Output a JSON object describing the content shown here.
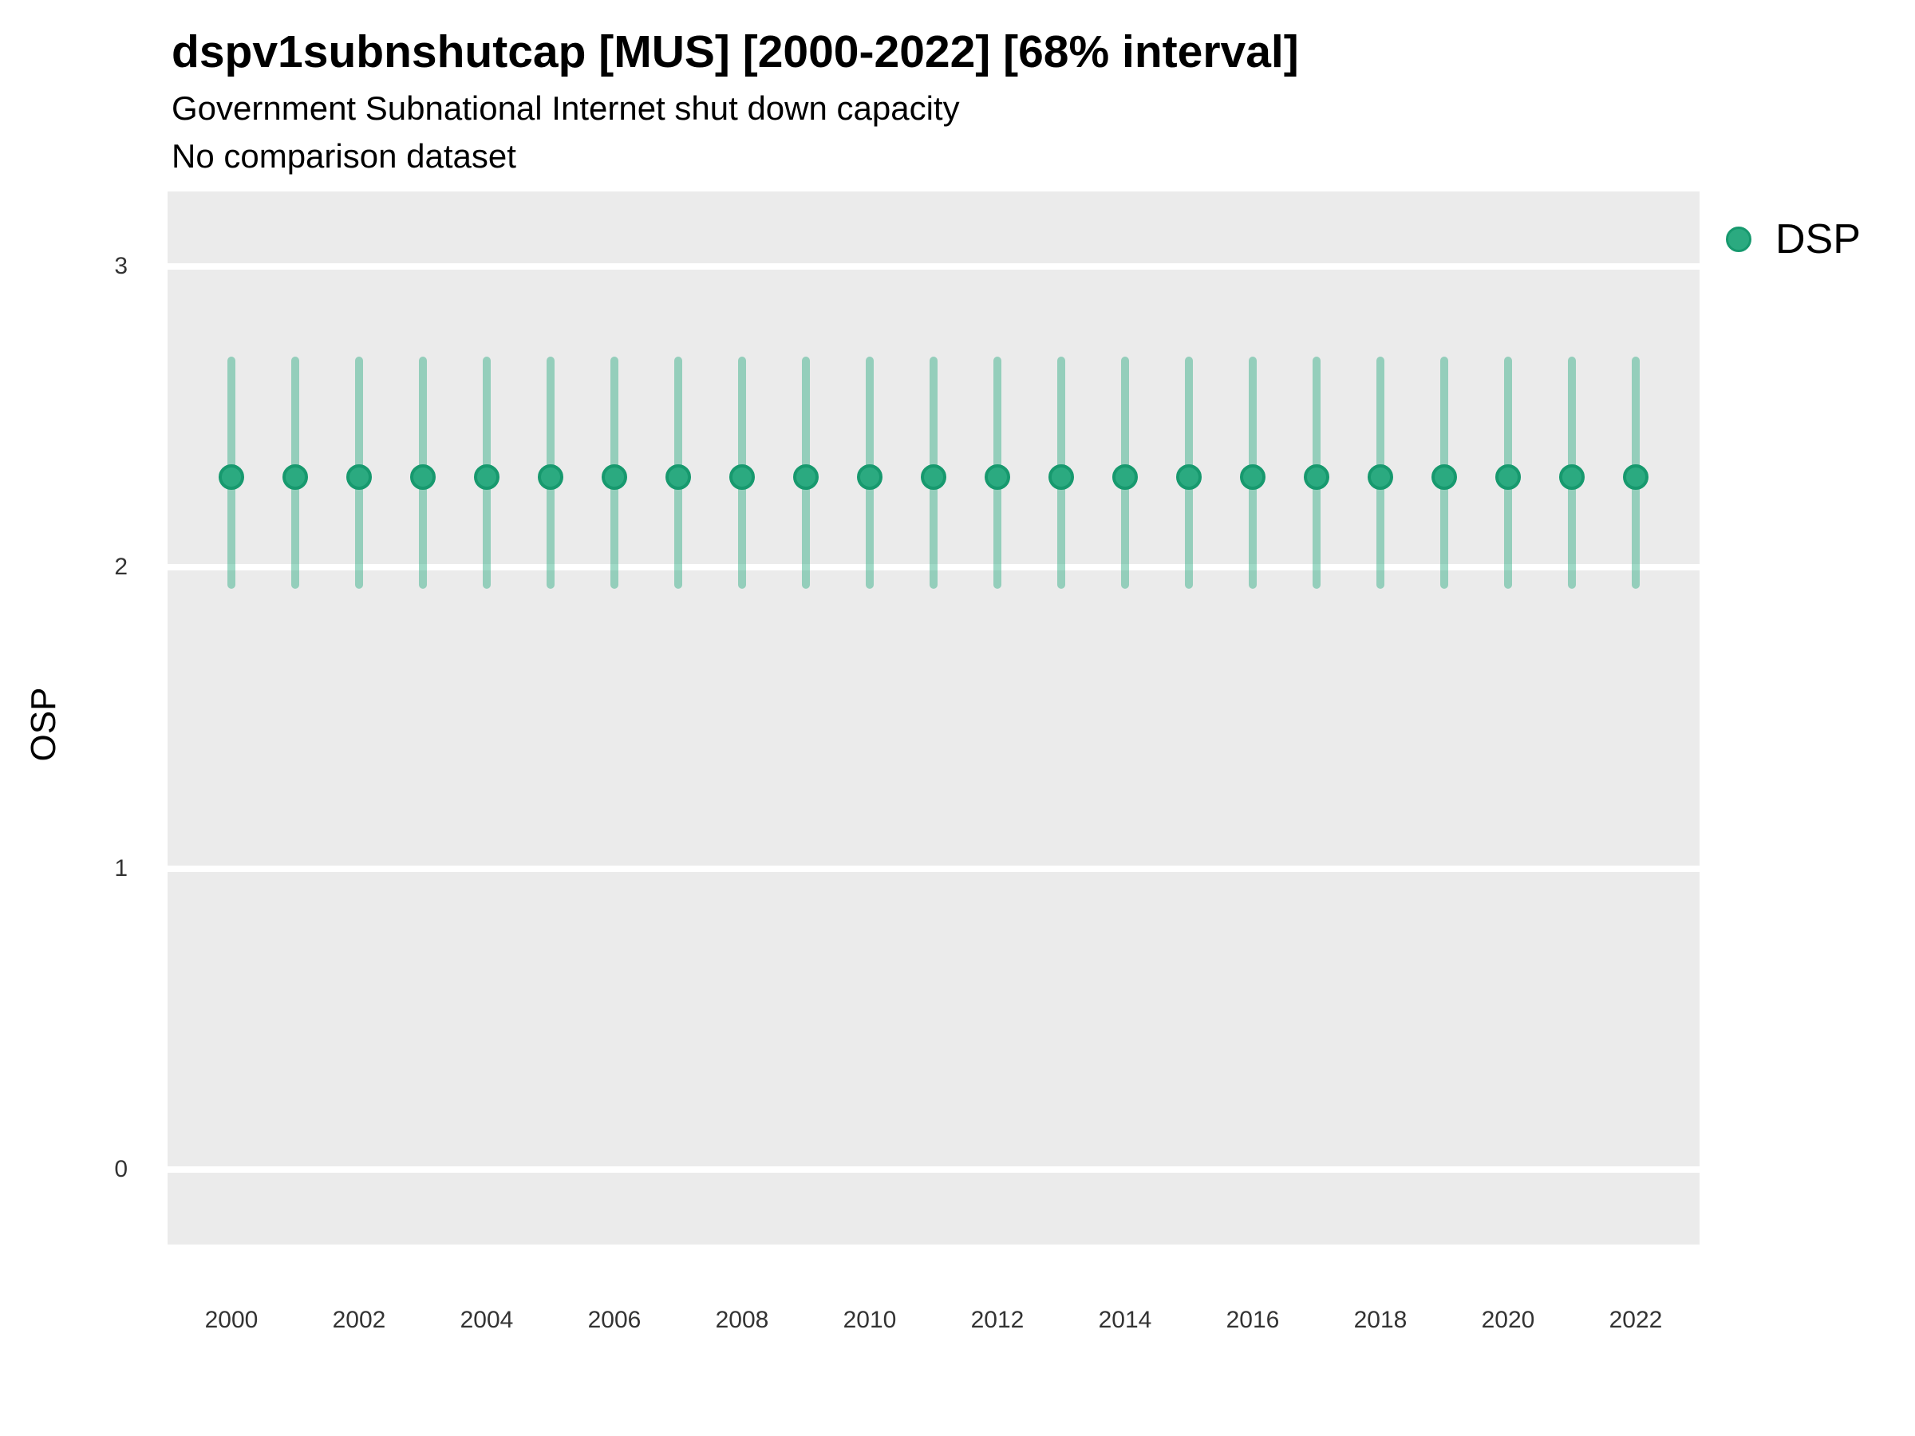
{
  "header": {
    "title": "dspv1subnshutcap [MUS] [2000-2022] [68% interval]",
    "subtitle": "Government Subnational Internet shut down capacity",
    "subtitle2": "No comparison dataset"
  },
  "legend": {
    "position": "right-top",
    "items": [
      {
        "label": "DSP",
        "marker": "circle-icon",
        "color": "#2baa80"
      }
    ]
  },
  "colors": {
    "point_fill": "#2baa80",
    "point_border": "#17996e",
    "interval_bar": "rgba(43,170,128,0.45)",
    "panel_background": "#ebebeb",
    "gridline": "#ffffff",
    "axis_text": "#333333",
    "text": "#000000"
  },
  "chart_data": {
    "type": "scatter",
    "subtype": "pointrange",
    "title": "dspv1subnshutcap [MUS] [2000-2022] [68% interval]",
    "subtitle": "Government Subnational Internet shut down capacity",
    "subtitle2": "No comparison dataset",
    "interval_level": "68%",
    "country": "MUS",
    "xlabel": "",
    "ylabel": "OSP",
    "ylim": [
      -0.25,
      3.25
    ],
    "yticks": [
      0,
      1,
      2,
      3
    ],
    "xticks": [
      2000,
      2002,
      2004,
      2006,
      2008,
      2010,
      2012,
      2014,
      2016,
      2018,
      2020,
      2022
    ],
    "x_range": [
      2000,
      2022
    ],
    "grid": "major-horizontal-only",
    "legend_position": "right-top",
    "series": [
      {
        "name": "DSP",
        "x": [
          2000,
          2001,
          2002,
          2003,
          2004,
          2005,
          2006,
          2007,
          2008,
          2009,
          2010,
          2011,
          2012,
          2013,
          2014,
          2015,
          2016,
          2017,
          2018,
          2019,
          2020,
          2021,
          2022
        ],
        "estimate": [
          2.3,
          2.3,
          2.3,
          2.3,
          2.3,
          2.3,
          2.3,
          2.3,
          2.3,
          2.3,
          2.3,
          2.3,
          2.3,
          2.3,
          2.3,
          2.3,
          2.3,
          2.3,
          2.3,
          2.3,
          2.3,
          2.3,
          2.3
        ],
        "ci_low": [
          1.93,
          1.93,
          1.93,
          1.93,
          1.93,
          1.93,
          1.93,
          1.93,
          1.93,
          1.93,
          1.93,
          1.93,
          1.93,
          1.93,
          1.93,
          1.93,
          1.93,
          1.93,
          1.93,
          1.93,
          1.93,
          1.93,
          1.93
        ],
        "ci_high": [
          2.7,
          2.7,
          2.7,
          2.7,
          2.7,
          2.7,
          2.7,
          2.7,
          2.7,
          2.7,
          2.7,
          2.7,
          2.7,
          2.7,
          2.7,
          2.7,
          2.7,
          2.7,
          2.7,
          2.7,
          2.7,
          2.7,
          2.7
        ]
      }
    ]
  }
}
